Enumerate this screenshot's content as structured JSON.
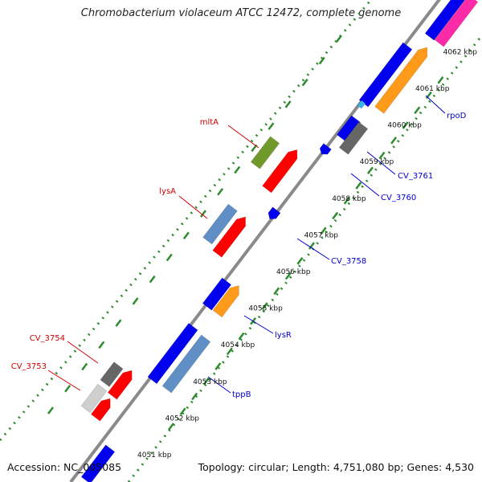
{
  "title": "Chromobacterium violaceum ATCC 12472, complete genome",
  "footer": {
    "accession": "Accession: NC_005085",
    "summary": "Topology: circular; Length: 4,751,080 bp; Genes: 4,530"
  },
  "ticks": [
    {
      "label": "4051 kbp",
      "pos": 4051
    },
    {
      "label": "4052 kbp",
      "pos": 4052
    },
    {
      "label": "4053 kbp",
      "pos": 4053
    },
    {
      "label": "4054 kbp",
      "pos": 4054
    },
    {
      "label": "4055 kbp",
      "pos": 4055
    },
    {
      "label": "4056 kbp",
      "pos": 4056
    },
    {
      "label": "4057 kbp",
      "pos": 4057
    },
    {
      "label": "4058 kbp",
      "pos": 4058
    },
    {
      "label": "4059 kbp",
      "pos": 4059
    },
    {
      "label": "4060 kbp",
      "pos": 4060
    },
    {
      "label": "4061 kbp",
      "pos": 4061
    },
    {
      "label": "4062 kbp",
      "pos": 4062
    }
  ],
  "gene_labels": [
    {
      "text": "mltA",
      "color": "#cc0000"
    },
    {
      "text": "lysA",
      "color": "#cc0000"
    },
    {
      "text": "CV_3754",
      "color": "#cc0000"
    },
    {
      "text": "CV_3753",
      "color": "#cc0000"
    },
    {
      "text": "rpoD",
      "color": "#0000cc"
    },
    {
      "text": "CV_3761",
      "color": "#0000cc"
    },
    {
      "text": "CV_3760",
      "color": "#0000cc"
    },
    {
      "text": "CV_3758",
      "color": "#0000cc"
    },
    {
      "text": "lysR",
      "color": "#0000cc"
    },
    {
      "text": "tppB",
      "color": "#0000cc"
    }
  ],
  "colors": {
    "backbone": "#8a8a8a",
    "gc_tick": "#2e8b2e",
    "red": "#ff0000",
    "blue": "#0000ee",
    "steel": "#5f8fc4",
    "orange": "#ff9a1a",
    "olive": "#6f9a2a",
    "gray": "#666666",
    "lightgray": "#cfcfcf",
    "magenta": "#ff2aa8",
    "cyan": "#33b5ee"
  }
}
